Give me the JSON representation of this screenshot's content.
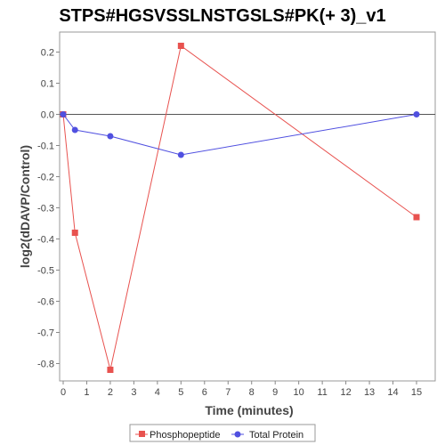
{
  "chart_data": {
    "type": "line",
    "title": "STPS#HGSVSSLNSTGSLS#PK(+ 3)_v1",
    "xlabel": "Time (minutes)",
    "ylabel": "log2(dDAVP/Control)",
    "xlim": [
      0,
      16
    ],
    "ylim": [
      -0.9,
      0.25
    ],
    "x_ticks": [
      0,
      1,
      2,
      3,
      4,
      5,
      6,
      7,
      8,
      9,
      10,
      11,
      12,
      13,
      14,
      15
    ],
    "x_tick_labels": [
      "0",
      "1",
      "2",
      "3",
      "4",
      "5",
      "6",
      "7",
      "8",
      "9",
      "10",
      "11",
      "12",
      "13",
      "14",
      "15"
    ],
    "y_ticks": [
      0.2,
      0.1,
      0.0,
      -0.1,
      -0.2,
      -0.3,
      -0.4,
      -0.5,
      -0.6,
      -0.7,
      -0.8
    ],
    "y_tick_labels": [
      "0.2",
      "0.1",
      "0.0",
      "-0.1",
      "-0.2",
      "-0.3",
      "-0.4",
      "-0.5",
      "-0.6",
      "-0.7",
      "-0.8"
    ],
    "zero_line": true,
    "grid": false,
    "legend_position": "bottom",
    "series": [
      {
        "name": "Phosphopeptide",
        "color": "#e8524f",
        "marker": "square",
        "x": [
          0,
          0.5,
          2,
          5,
          15
        ],
        "y": [
          0.0,
          -0.38,
          -0.82,
          0.22,
          -0.33
        ]
      },
      {
        "name": "Total Protein",
        "color": "#5050e0",
        "marker": "circle",
        "x": [
          0,
          0.5,
          2,
          5,
          15
        ],
        "y": [
          0.0,
          -0.05,
          -0.07,
          -0.13,
          0.0
        ]
      }
    ]
  }
}
